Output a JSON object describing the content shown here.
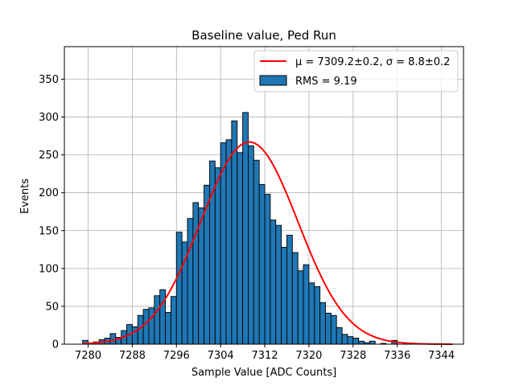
{
  "chart_data": {
    "type": "bar",
    "title": "Baseline value, Ped Run",
    "xlabel": "Sample Value [ADC Counts]",
    "ylabel": "Events",
    "xlim": [
      7275.7,
      7348.0
    ],
    "ylim": [
      0,
      393
    ],
    "xticks": [
      7280,
      7288,
      7296,
      7304,
      7312,
      7320,
      7328,
      7336,
      7344
    ],
    "yticks": [
      0,
      50,
      100,
      150,
      200,
      250,
      300,
      350
    ],
    "grid": true,
    "legend_position": "top-right",
    "colors": {
      "bars": "#1f77b4",
      "bar_edge": "#000000",
      "fit": "#ff0000",
      "grid": "#b0b0b0"
    },
    "series": [
      {
        "name": "RMS = 9.19",
        "kind": "histogram",
        "bin_start": 7279.0,
        "bin_width": 1.0,
        "values": [
          5,
          0,
          3,
          6,
          8,
          14,
          9,
          18,
          26,
          23,
          38,
          46,
          48,
          64,
          72,
          42,
          63,
          148,
          135,
          166,
          187,
          180,
          210,
          242,
          233,
          266,
          270,
          295,
          253,
          306,
          262,
          243,
          211,
          198,
          164,
          157,
          128,
          144,
          121,
          97,
          105,
          81,
          76,
          55,
          41,
          38,
          22,
          13,
          10,
          8,
          4,
          2,
          4,
          0,
          1,
          0,
          5
        ]
      },
      {
        "name": "μ = 7309.2±0.2, σ = 8.8±0.2",
        "kind": "gaussian_fit",
        "mu": 7309.2,
        "sigma": 8.8,
        "amplitude": 267,
        "x_range": [
          7279,
          7346
        ]
      }
    ]
  }
}
